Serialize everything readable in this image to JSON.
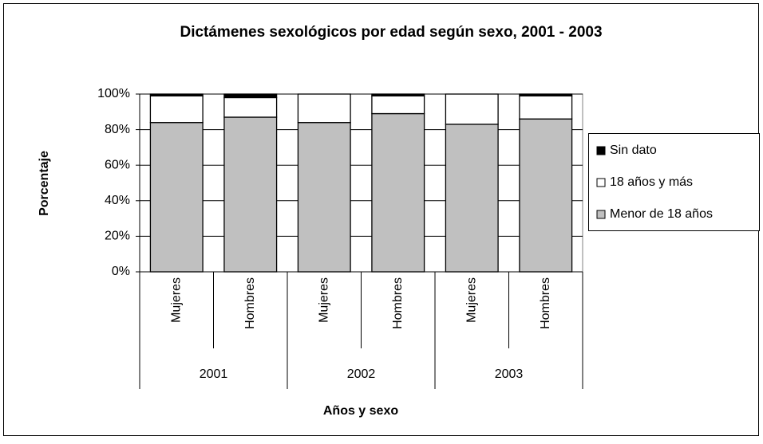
{
  "chart_data": {
    "type": "stacked_bar",
    "title": "Dictámenes sexológicos por edad según sexo, 2001 - 2003",
    "y_label": "Porcentaje",
    "x_label": "Años y sexo",
    "categories": [
      "Mujeres",
      "Hombres",
      "Mujeres",
      "Hombres",
      "Mujeres",
      "Hombres"
    ],
    "groups": [
      "2001",
      "2002",
      "2003"
    ],
    "series": [
      {
        "name": "Menor de 18 años",
        "color": "#c0c0c0",
        "values": [
          84,
          87,
          84,
          89,
          83,
          86
        ]
      },
      {
        "name": "18 años y más",
        "color": "#ffffff",
        "values": [
          15,
          11,
          16,
          10,
          17,
          13
        ]
      },
      {
        "name": "Sin dato",
        "color": "#000000",
        "values": [
          1,
          2,
          0,
          1,
          0,
          1
        ]
      }
    ],
    "ylim": [
      0,
      100
    ],
    "yticks": [
      {
        "value": 0,
        "label": "0%"
      },
      {
        "value": 20,
        "label": "20%"
      },
      {
        "value": 40,
        "label": "40%"
      },
      {
        "value": 60,
        "label": "60%"
      },
      {
        "value": 80,
        "label": "80%"
      },
      {
        "value": 100,
        "label": "100%"
      }
    ],
    "grid": true,
    "legend": "right"
  }
}
